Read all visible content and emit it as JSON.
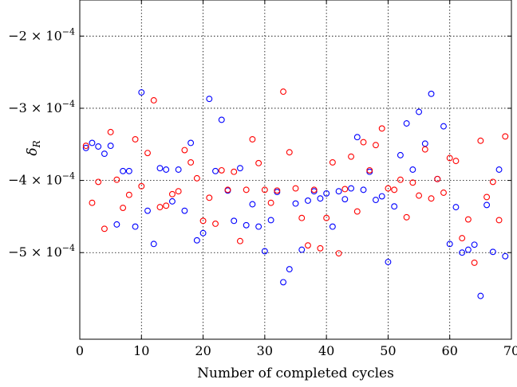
{
  "chart_data": {
    "type": "scatter",
    "xlabel": "Number of completed cycles",
    "ylabel": "δR",
    "xlim": [
      0,
      70
    ],
    "ylim": [
      -0.00062,
      -0.00015
    ],
    "grid": true,
    "x_ticks": [
      0,
      10,
      20,
      30,
      40,
      50,
      60,
      70
    ],
    "x_tick_labels": [
      "0",
      "10",
      "20",
      "30",
      "40",
      "50",
      "60",
      "70"
    ],
    "y_ticks": [
      -0.0002,
      -0.0003,
      -0.0004,
      -0.0005
    ],
    "y_tick_labels": [
      {
        "mantissa": "−2",
        "exp": "−4"
      },
      {
        "mantissa": "−3",
        "exp": "−4"
      },
      {
        "mantissa": "−4",
        "exp": "−4"
      },
      {
        "mantissa": "−5",
        "exp": "−4"
      }
    ],
    "series": [
      {
        "color": "#0000ff",
        "marker": "circle-open",
        "points": [
          [
            1,
            -0.000355
          ],
          [
            2,
            -0.000348
          ],
          [
            3,
            -0.000353
          ],
          [
            4,
            -0.000363
          ],
          [
            5,
            -0.000352
          ],
          [
            6,
            -0.000461
          ],
          [
            7,
            -0.000387
          ],
          [
            8,
            -0.000387
          ],
          [
            9,
            -0.000464
          ],
          [
            10,
            -0.000278
          ],
          [
            11,
            -0.000442
          ],
          [
            12,
            -0.000488
          ],
          [
            13,
            -0.000383
          ],
          [
            14,
            -0.000385
          ],
          [
            15,
            -0.000429
          ],
          [
            16,
            -0.000385
          ],
          [
            17,
            -0.000442
          ],
          [
            18,
            -0.000348
          ],
          [
            19,
            -0.000483
          ],
          [
            20,
            -0.000473
          ],
          [
            21,
            -0.000287
          ],
          [
            22,
            -0.000387
          ],
          [
            23,
            -0.000316
          ],
          [
            24,
            -0.000414
          ],
          [
            25,
            -0.000456
          ],
          [
            26,
            -0.000383
          ],
          [
            27,
            -0.000462
          ],
          [
            28,
            -0.000433
          ],
          [
            29,
            -0.000464
          ],
          [
            30,
            -0.000498
          ],
          [
            31,
            -0.000455
          ],
          [
            32,
            -0.000416
          ],
          [
            33,
            -0.000541
          ],
          [
            34,
            -0.000523
          ],
          [
            35,
            -0.000432
          ],
          [
            36,
            -0.000496
          ],
          [
            37,
            -0.000428
          ],
          [
            38,
            -0.000415
          ],
          [
            39,
            -0.000425
          ],
          [
            40,
            -0.000418
          ],
          [
            41,
            -0.000464
          ],
          [
            42,
            -0.000415
          ],
          [
            43,
            -0.000426
          ],
          [
            44,
            -0.000411
          ],
          [
            45,
            -0.00034
          ],
          [
            46,
            -0.000413
          ],
          [
            47,
            -0.000388
          ],
          [
            48,
            -0.000427
          ],
          [
            49,
            -0.000422
          ],
          [
            50,
            -0.000513
          ],
          [
            51,
            -0.000436
          ],
          [
            52,
            -0.000365
          ],
          [
            53,
            -0.000321
          ],
          [
            54,
            -0.000385
          ],
          [
            55,
            -0.000305
          ],
          [
            56,
            -0.000349
          ],
          [
            57,
            -0.00028
          ],
          [
            58,
            -0.000398
          ],
          [
            59,
            -0.000325
          ],
          [
            60,
            -0.000488
          ],
          [
            61,
            -0.000437
          ],
          [
            62,
            -0.0005
          ],
          [
            63,
            -0.000496
          ],
          [
            64,
            -0.000489
          ],
          [
            65,
            -0.00056
          ],
          [
            66,
            -0.000434
          ],
          [
            67,
            -0.000499
          ],
          [
            68,
            -0.000385
          ],
          [
            69,
            -0.000505
          ]
        ]
      },
      {
        "color": "#ff0000",
        "marker": "circle-open",
        "points": [
          [
            1,
            -0.000352
          ],
          [
            2,
            -0.000431
          ],
          [
            3,
            -0.000402
          ],
          [
            4,
            -0.000467
          ],
          [
            5,
            -0.000333
          ],
          [
            6,
            -0.000399
          ],
          [
            7,
            -0.000438
          ],
          [
            8,
            -0.00042
          ],
          [
            9,
            -0.000343
          ],
          [
            10,
            -0.000408
          ],
          [
            11,
            -0.000362
          ],
          [
            12,
            -0.000289
          ],
          [
            13,
            -0.000437
          ],
          [
            14,
            -0.000435
          ],
          [
            15,
            -0.000419
          ],
          [
            16,
            -0.000415
          ],
          [
            17,
            -0.000358
          ],
          [
            18,
            -0.000375
          ],
          [
            19,
            -0.000397
          ],
          [
            20,
            -0.000456
          ],
          [
            21,
            -0.000424
          ],
          [
            22,
            -0.00046
          ],
          [
            23,
            -0.000386
          ],
          [
            24,
            -0.000413
          ],
          [
            25,
            -0.000388
          ],
          [
            26,
            -0.000484
          ],
          [
            27,
            -0.000413
          ],
          [
            28,
            -0.000343
          ],
          [
            29,
            -0.000376
          ],
          [
            30,
            -0.000413
          ],
          [
            31,
            -0.000431
          ],
          [
            32,
            -0.000414
          ],
          [
            33,
            -0.000277
          ],
          [
            34,
            -0.000361
          ],
          [
            35,
            -0.000411
          ],
          [
            36,
            -0.000452
          ],
          [
            37,
            -0.00049
          ],
          [
            38,
            -0.000413
          ],
          [
            39,
            -0.000494
          ],
          [
            40,
            -0.000452
          ],
          [
            41,
            -0.000375
          ],
          [
            42,
            -0.000501
          ],
          [
            43,
            -0.000412
          ],
          [
            44,
            -0.000367
          ],
          [
            45,
            -0.000443
          ],
          [
            46,
            -0.000347
          ],
          [
            47,
            -0.000386
          ],
          [
            48,
            -0.000351
          ],
          [
            49,
            -0.000328
          ],
          [
            50,
            -0.000411
          ],
          [
            51,
            -0.000413
          ],
          [
            52,
            -0.000399
          ],
          [
            53,
            -0.000451
          ],
          [
            54,
            -0.000403
          ],
          [
            55,
            -0.000421
          ],
          [
            56,
            -0.000357
          ],
          [
            57,
            -0.000425
          ],
          [
            58,
            -0.000398
          ],
          [
            59,
            -0.000417
          ],
          [
            60,
            -0.000369
          ],
          [
            61,
            -0.000373
          ],
          [
            62,
            -0.00048
          ],
          [
            63,
            -0.000454
          ],
          [
            64,
            -0.000514
          ],
          [
            65,
            -0.000345
          ],
          [
            66,
            -0.000423
          ],
          [
            67,
            -0.000402
          ],
          [
            68,
            -0.000455
          ],
          [
            69,
            -0.000339
          ]
        ]
      }
    ]
  }
}
